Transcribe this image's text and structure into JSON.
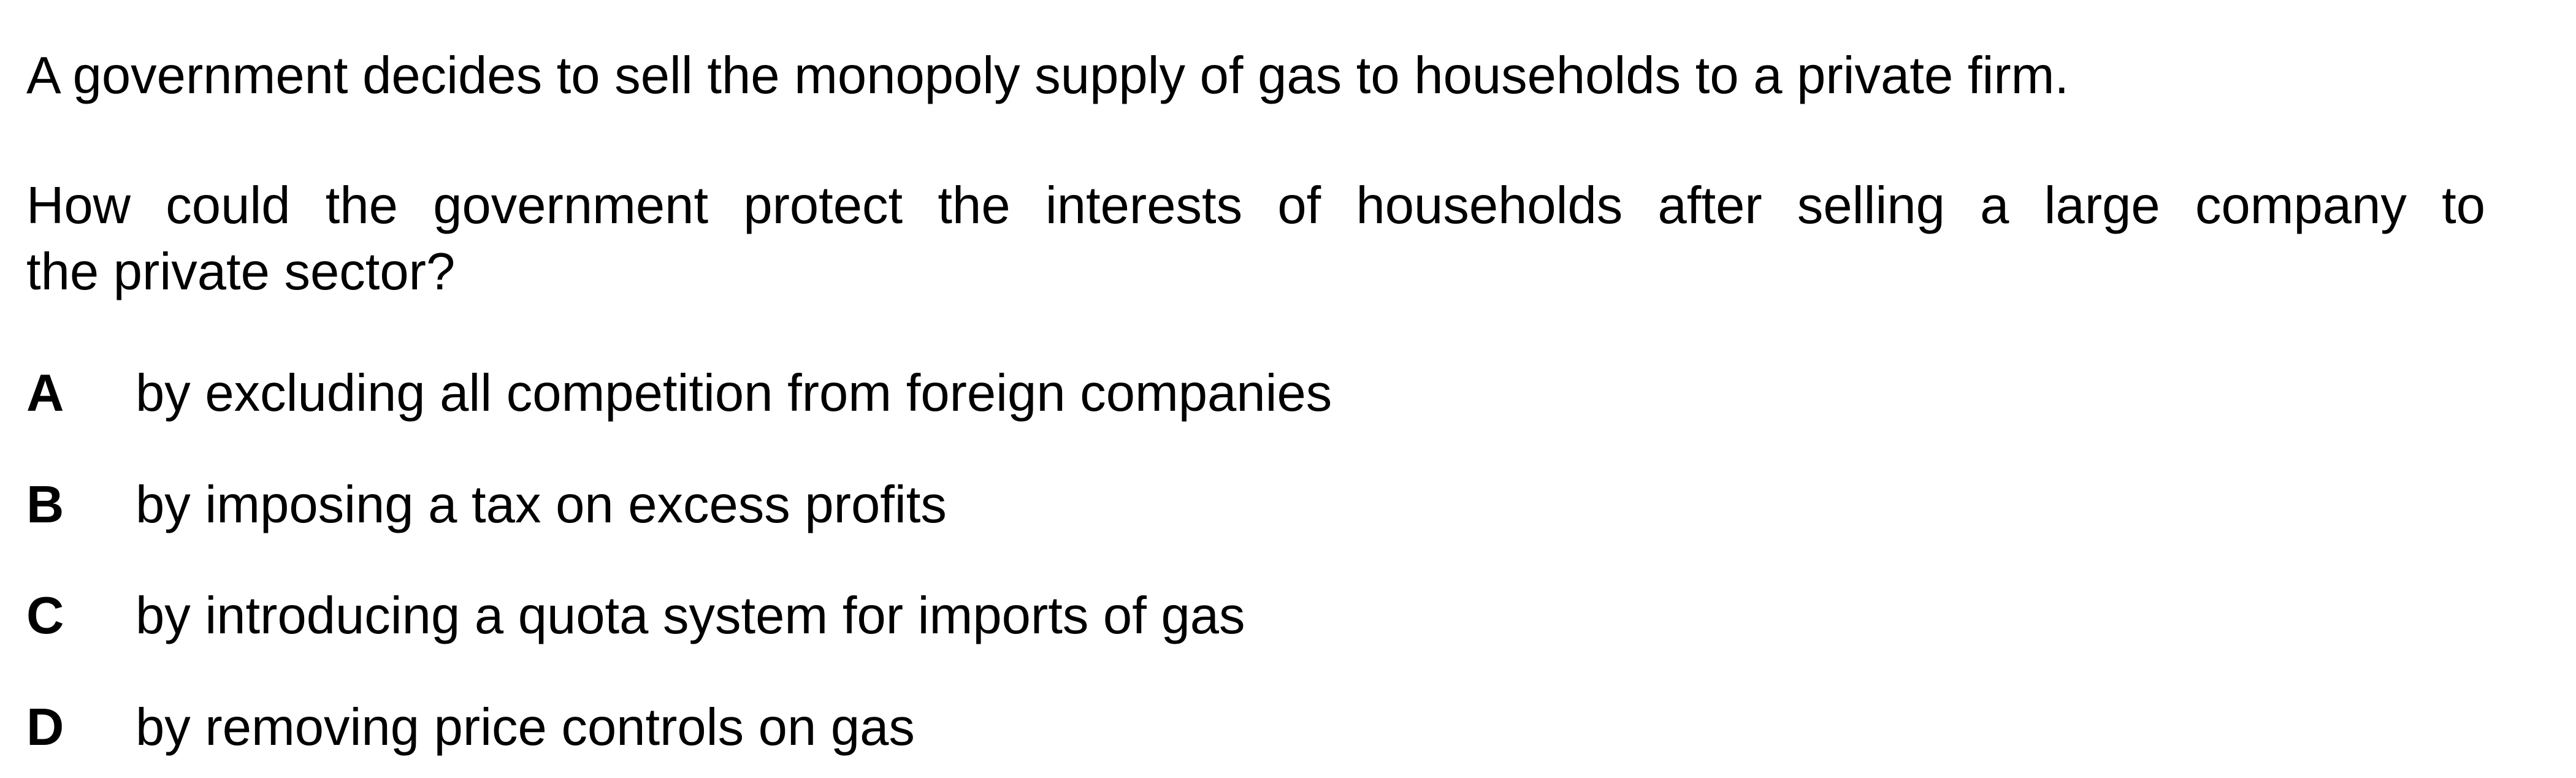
{
  "question": {
    "intro": "A government decides to sell the monopoly supply of gas to households to a private firm.",
    "stem_line1": "How could the government protect the interests of households after selling a large company to",
    "stem_line2": "the private sector?",
    "options": [
      {
        "letter": "A",
        "text": "by excluding all competition from foreign companies"
      },
      {
        "letter": "B",
        "text": "by imposing a tax on excess profits"
      },
      {
        "letter": "C",
        "text": "by introducing a quota system for imports of gas"
      },
      {
        "letter": "D",
        "text": "by removing price controls on gas"
      }
    ]
  }
}
